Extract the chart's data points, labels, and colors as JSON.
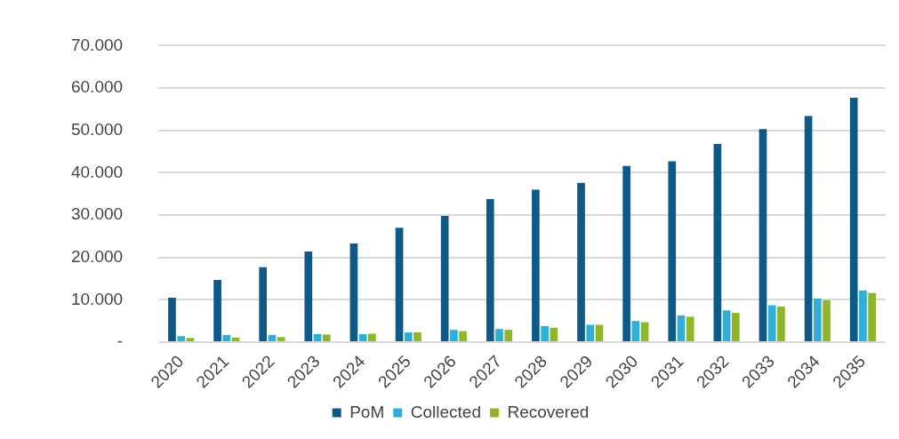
{
  "chart_data": {
    "type": "bar",
    "categories": [
      "2020",
      "2021",
      "2022",
      "2023",
      "2024",
      "2025",
      "2026",
      "2027",
      "2028",
      "2029",
      "2030",
      "2031",
      "2032",
      "2033",
      "2034",
      "2035"
    ],
    "series": [
      {
        "name": "PoM",
        "color": "#0e5a87",
        "values": [
          10500,
          14700,
          17700,
          21400,
          23300,
          27000,
          29800,
          33800,
          36000,
          37600,
          41600,
          42700,
          46800,
          50300,
          53400,
          57700
        ]
      },
      {
        "name": "Collected",
        "color": "#2eb0d4",
        "values": [
          1400,
          1700,
          1700,
          1900,
          1900,
          2300,
          2900,
          3100,
          3800,
          4100,
          5000,
          6300,
          7500,
          8700,
          10300,
          12200
        ]
      },
      {
        "name": "Recovered",
        "color": "#8fb52b",
        "values": [
          1000,
          1100,
          1200,
          1800,
          2000,
          2300,
          2600,
          2900,
          3400,
          4100,
          4700,
          6000,
          6900,
          8400,
          9900,
          11600
        ]
      }
    ],
    "ylim": [
      0,
      70000
    ],
    "yticks": [
      {
        "value": 0,
        "label": "-"
      },
      {
        "value": 10000,
        "label": "10.000"
      },
      {
        "value": 20000,
        "label": "20.000"
      },
      {
        "value": 30000,
        "label": "30.000"
      },
      {
        "value": 40000,
        "label": "40.000"
      },
      {
        "value": 50000,
        "label": "50.000"
      },
      {
        "value": 60000,
        "label": "60.000"
      },
      {
        "value": 70000,
        "label": "70.000"
      }
    ],
    "grid": "y",
    "legend": "bottom"
  }
}
